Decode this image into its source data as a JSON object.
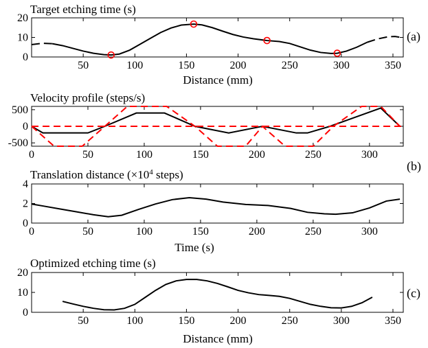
{
  "chart_data": [
    {
      "type": "line",
      "panel_label": "(a)",
      "title": "Target etching time (s)",
      "xlabel": "Distance (mm)",
      "ylabel": "",
      "xlim": [
        0,
        360
      ],
      "ylim": [
        0,
        20
      ],
      "xticks": [
        50,
        100,
        150,
        200,
        250,
        300,
        350
      ],
      "yticks": [
        0,
        10,
        20
      ],
      "series": [
        {
          "name": "target-etching-time",
          "style": "solid",
          "color": "#000000",
          "x": [
            0,
            10,
            20,
            30,
            40,
            50,
            60,
            70,
            77,
            85,
            95,
            105,
            115,
            125,
            135,
            145,
            157,
            165,
            175,
            185,
            195,
            205,
            215,
            228,
            240,
            250,
            260,
            270,
            280,
            290,
            296,
            305,
            315,
            325,
            335,
            345,
            352,
            360
          ],
          "y": [
            6.3,
            7.0,
            6.8,
            5.8,
            4.4,
            3.0,
            1.9,
            1.2,
            1.0,
            1.5,
            3.5,
            6.5,
            9.5,
            12.5,
            14.8,
            16.3,
            16.8,
            16.4,
            15.0,
            13.2,
            11.5,
            10.2,
            9.3,
            8.4,
            7.9,
            6.9,
            5.2,
            3.5,
            2.3,
            1.8,
            1.9,
            3.0,
            5.0,
            7.5,
            9.2,
            10.3,
            10.5,
            9.8
          ]
        }
      ],
      "dashed_ranges": [
        [
          0,
          28
        ],
        [
          330,
          360
        ]
      ],
      "markers": {
        "name": "target-points",
        "shape": "circle",
        "color": "#ff0000",
        "x": [
          77,
          157,
          228,
          296
        ],
        "y": [
          1.0,
          16.8,
          8.4,
          1.9
        ]
      }
    },
    {
      "type": "line",
      "panel_label": "(b)",
      "title": "Velocity profile (steps/s)",
      "xlabel": "",
      "ylabel": "",
      "xlim": [
        0,
        330
      ],
      "ylim": [
        -600,
        600
      ],
      "xticks": [
        0,
        50,
        100,
        150,
        200,
        250,
        300
      ],
      "yticks": [
        -500,
        0,
        500
      ],
      "series": [
        {
          "name": "velocity",
          "style": "solid",
          "color": "#000000",
          "x": [
            0,
            10,
            50,
            65,
            93,
            118,
            145,
            175,
            205,
            235,
            245,
            265,
            310,
            327
          ],
          "y": [
            0,
            -200,
            -200,
            0,
            400,
            400,
            0,
            -200,
            0,
            -200,
            -200,
            0,
            550,
            0
          ]
        },
        {
          "name": "velocity-limit-envelope",
          "style": "dashed",
          "color": "#ff0000",
          "x": [
            0,
            20,
            45,
            65,
            85,
            120,
            145,
            165,
            190,
            205,
            225,
            250,
            268,
            293,
            310,
            327
          ],
          "y": [
            0,
            -600,
            -600,
            0,
            600,
            600,
            0,
            -600,
            -600,
            0,
            -600,
            -600,
            0,
            600,
            600,
            0
          ]
        },
        {
          "name": "zero-line",
          "style": "dashed",
          "color": "#ff0000",
          "x": [
            0,
            330
          ],
          "y": [
            0,
            0
          ]
        }
      ]
    },
    {
      "type": "line",
      "panel_label": "",
      "title": "Translation distance (×10⁴ steps)",
      "title_pre": "Translation distance (×10",
      "title_sup": "4",
      "title_post": " steps)",
      "xlabel": "Time (s)",
      "ylabel": "",
      "xlim": [
        0,
        330
      ],
      "ylim": [
        0,
        4
      ],
      "xticks": [
        0,
        50,
        100,
        150,
        200,
        250,
        300
      ],
      "yticks": [
        0,
        2,
        4
      ],
      "series": [
        {
          "name": "translation-distance",
          "style": "solid",
          "color": "#000000",
          "x": [
            0,
            10,
            25,
            40,
            55,
            68,
            80,
            95,
            110,
            125,
            140,
            155,
            170,
            190,
            210,
            230,
            245,
            260,
            270,
            285,
            300,
            315,
            327
          ],
          "y": [
            1.95,
            1.75,
            1.45,
            1.15,
            0.85,
            0.65,
            0.8,
            1.4,
            1.95,
            2.4,
            2.6,
            2.45,
            2.15,
            1.9,
            1.8,
            1.5,
            1.1,
            0.95,
            0.9,
            1.05,
            1.55,
            2.25,
            2.45
          ]
        }
      ]
    },
    {
      "type": "line",
      "panel_label": "(c)",
      "title": "Optimized etching time (s)",
      "xlabel": "Distance (mm)",
      "ylabel": "",
      "xlim": [
        0,
        360
      ],
      "ylim": [
        0,
        20
      ],
      "xticks": [
        50,
        100,
        150,
        200,
        250,
        300,
        350
      ],
      "yticks": [
        0,
        10,
        20
      ],
      "series": [
        {
          "name": "optimized-etching-time",
          "style": "solid",
          "color": "#000000",
          "x": [
            30,
            40,
            50,
            60,
            70,
            80,
            90,
            100,
            110,
            120,
            130,
            140,
            150,
            160,
            170,
            180,
            190,
            200,
            210,
            220,
            230,
            240,
            250,
            260,
            270,
            280,
            290,
            300,
            310,
            320,
            330
          ],
          "y": [
            5.5,
            4.2,
            3.0,
            2.0,
            1.3,
            1.2,
            2.0,
            4.0,
            7.5,
            11.0,
            14.0,
            15.8,
            16.5,
            16.5,
            15.8,
            14.5,
            12.8,
            11.0,
            9.8,
            8.9,
            8.5,
            8.0,
            7.0,
            5.5,
            4.0,
            3.0,
            2.3,
            2.2,
            3.0,
            4.8,
            7.6
          ]
        }
      ]
    }
  ]
}
